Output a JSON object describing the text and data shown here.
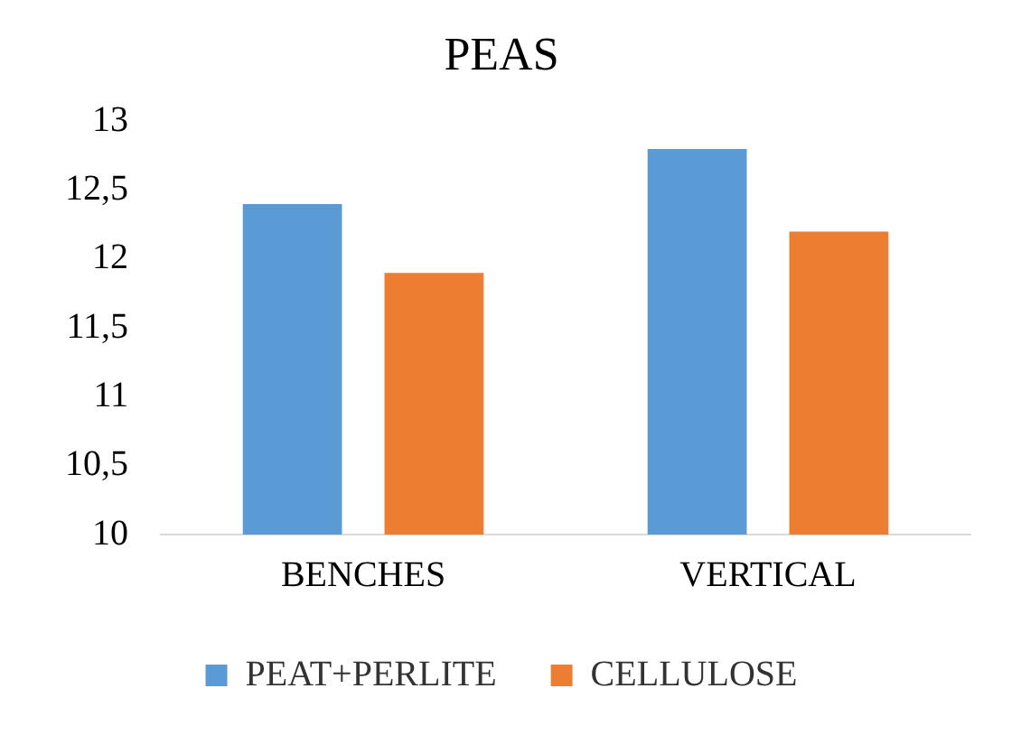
{
  "chart_data": {
    "type": "bar",
    "title": "PEAS",
    "categories": [
      "BENCHES",
      "VERTICAL"
    ],
    "series": [
      {
        "name": "PEAT+PERLITE",
        "color": "#5b9bd5",
        "values": [
          12.4,
          12.8
        ]
      },
      {
        "name": "CELLULOSE",
        "color": "#ed7d31",
        "values": [
          11.9,
          12.2
        ]
      }
    ],
    "ylim": [
      10,
      13
    ],
    "yticks": [
      10,
      {
        "value": 10.5,
        "label": "10,5"
      },
      11,
      {
        "value": 11.5,
        "label": "11,5"
      },
      12,
      {
        "value": 12.5,
        "label": "12,5"
      },
      13
    ],
    "grid": false,
    "legend": "bottom"
  }
}
